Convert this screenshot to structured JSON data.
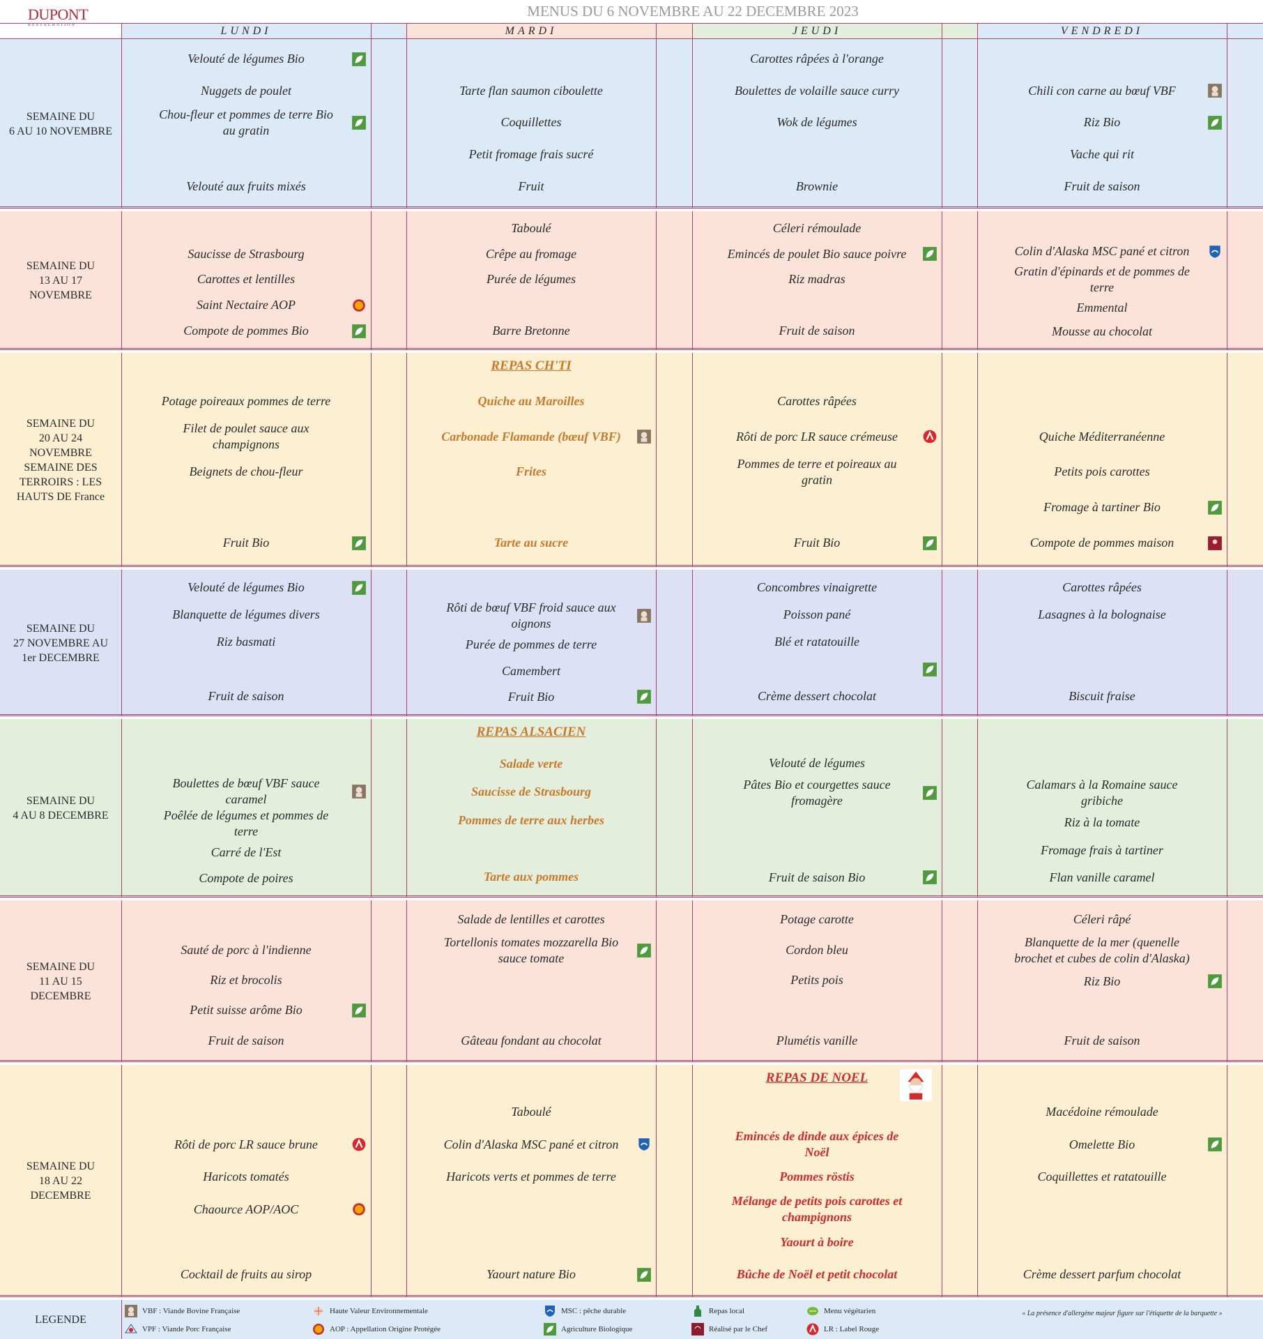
{
  "header": {
    "logo": "DUPONT",
    "logo_sub": "RESTAURATION",
    "title": "MENUS DU 6 NOVEMBRE AU 22 DECEMBRE 2023"
  },
  "days": [
    {
      "name": "LUNDI",
      "color": "#dce9f7"
    },
    {
      "name": "MARDI",
      "color": "#fbe3da"
    },
    {
      "name": "JEUDI",
      "color": "#e3efdc"
    },
    {
      "name": "VENDREDI",
      "color": "#dce9f7"
    }
  ],
  "weeks": [
    {
      "label": "SEMAINE DU\n6 AU 10 NOVEMBRE",
      "color": "#dce9f7",
      "cells": [
        {
          "items": [
            {
              "text": "Velouté de légumes Bio",
              "label": "bio"
            },
            "Nuggets de poulet",
            {
              "text": "Chou-fleur et pommes de terre Bio au gratin",
              "label": "bio"
            },
            null,
            "Velouté aux fruits mixés"
          ]
        },
        {
          "items": [
            null,
            "Tarte flan saumon ciboulette",
            "Coquillettes",
            "Petit fromage frais sucré",
            "Fruit"
          ]
        },
        {
          "items": [
            "Carottes râpées à l'orange",
            "Boulettes de volaille sauce curry",
            "Wok de légumes",
            null,
            "Brownie"
          ]
        },
        {
          "items": [
            null,
            {
              "text": "Chili con carne au bœuf VBF",
              "label": "vbf"
            },
            {
              "text": "Riz Bio",
              "label": "bio"
            },
            "Vache qui rit",
            "Fruit de saison"
          ]
        }
      ]
    },
    {
      "label": "SEMAINE DU\n13 AU 17\nNOVEMBRE",
      "color": "#fbe3da",
      "cells": [
        {
          "items": [
            null,
            "Saucisse de Strasbourg",
            "Carottes et lentilles",
            {
              "text": "Saint Nectaire AOP",
              "label": "aop"
            },
            {
              "text": "Compote de pommes Bio",
              "label": "bio"
            }
          ]
        },
        {
          "items": [
            "Taboulé",
            "Crêpe au fromage",
            "Purée de légumes",
            null,
            "Barre Bretonne"
          ]
        },
        {
          "items": [
            "Céleri rémoulade",
            {
              "text": "Emincés de poulet Bio sauce poivre",
              "label": "bio"
            },
            "Riz madras",
            null,
            "Fruit de saison"
          ]
        },
        {
          "items": [
            null,
            {
              "text": "Colin d'Alaska MSC pané et citron",
              "label": "msc"
            },
            "Gratin d'épinards et de pommes de terre",
            "Emmental",
            "Mousse au chocolat"
          ]
        }
      ]
    },
    {
      "label": "SEMAINE DU\n20 AU 24\nNOVEMBRE\nSEMAINE DES\nTERROIRS : LES\nHAUTS DE France",
      "color": "#fdf0d2",
      "cells": [
        {
          "items": [
            "Potage poireaux pommes de terre",
            "Filet de poulet sauce aux champignons",
            "Beignets de chou-fleur",
            null,
            {
              "text": "Fruit Bio",
              "label": "bio"
            }
          ]
        },
        {
          "theme": {
            "title": "REPAS CH'TI",
            "color": "#c87a2c"
          },
          "items": [
            "Quiche au Maroilles",
            {
              "text": "Carbonade Flamande (bœuf VBF)",
              "label": "vbf"
            },
            "Frites",
            null,
            "Tarte au sucre"
          ]
        },
        {
          "items": [
            "Carottes râpées",
            {
              "text": "Rôti de porc LR sauce crémeuse",
              "label": "lr"
            },
            "Pommes de terre et poireaux au gratin",
            null,
            {
              "text": "Fruit Bio",
              "label": "bio"
            }
          ]
        },
        {
          "items": [
            null,
            "Quiche Méditerranéenne",
            "Petits pois carottes",
            {
              "text": "Fromage à tartiner Bio",
              "label": "bio"
            },
            {
              "text": "Compote de pommes maison",
              "label": "maison"
            }
          ]
        }
      ]
    },
    {
      "label": "SEMAINE DU\n27 NOVEMBRE AU\n1er DECEMBRE",
      "color": "#dde1f5",
      "cells": [
        {
          "items": [
            {
              "text": "Velouté de légumes Bio",
              "label": "bio"
            },
            "Blanquette de légumes divers",
            "Riz basmati",
            null,
            "Fruit de saison"
          ]
        },
        {
          "items": [
            null,
            {
              "text": "Rôti de bœuf VBF froid sauce aux oignons",
              "label": "vbf"
            },
            "Purée de pommes de terre",
            "Camembert",
            {
              "text": "Fruit Bio",
              "label": "bio"
            }
          ]
        },
        {
          "items": [
            "Concombres vinaigrette",
            "Poisson pané",
            "Blé et ratatouille",
            {
              "label": "bio"
            },
            "Crème dessert chocolat"
          ]
        },
        {
          "items": [
            "Carottes râpées",
            "Lasagnes à la bolognaise",
            null,
            null,
            "Biscuit fraise"
          ]
        }
      ]
    },
    {
      "label": "SEMAINE DU\n4  AU 8 DECEMBRE",
      "color": "#e3efdc",
      "cells": [
        {
          "items": [
            null,
            {
              "text": "Boulettes de bœuf VBF sauce caramel",
              "label": "vbf"
            },
            "Poêlée de légumes et pommes de terre",
            "Carré de l'Est",
            "Compote de poires"
          ]
        },
        {
          "theme": {
            "title": "REPAS ALSACIEN",
            "color": "#c87a2c"
          },
          "items": [
            "Salade verte",
            "Saucisse de Strasbourg",
            "Pommes de terre aux herbes",
            null,
            "Tarte aux pommes"
          ]
        },
        {
          "items": [
            "Velouté de légumes",
            {
              "text": "Pâtes Bio et courgettes sauce fromagère",
              "label": "bio"
            },
            null,
            null,
            {
              "text": "Fruit de saison Bio",
              "label": "bio"
            }
          ]
        },
        {
          "items": [
            null,
            "Calamars à la Romaine sauce gribiche",
            "Riz à la tomate",
            "Fromage frais à tartiner",
            "Flan vanille caramel"
          ]
        }
      ]
    },
    {
      "label": "SEMAINE DU\n11 AU 15\nDECEMBRE",
      "color": "#fbe3da",
      "cells": [
        {
          "items": [
            null,
            "Sauté de porc à l'indienne",
            "Riz et brocolis",
            {
              "text": "Petit suisse arôme Bio",
              "label": "bio"
            },
            "Fruit de saison"
          ]
        },
        {
          "items": [
            "Salade de lentilles et carottes",
            {
              "text": "Tortellonis tomates mozzarella Bio sauce tomate",
              "label": "bio"
            },
            null,
            null,
            "Gâteau fondant au chocolat"
          ]
        },
        {
          "items": [
            "Potage carotte",
            "Cordon bleu",
            "Petits pois",
            null,
            "Plumétis vanille"
          ]
        },
        {
          "items": [
            "Céleri râpé",
            "Blanquette de la mer (quenelle brochet et cubes de colin d'Alaska)",
            {
              "text": "Riz Bio",
              "label": "bio"
            },
            null,
            "Fruit de saison"
          ]
        }
      ]
    },
    {
      "label": "SEMAINE DU\n18 AU 22\nDECEMBRE",
      "color": "#fdf0d2",
      "cells": [
        {
          "items": [
            null,
            {
              "text": "Rôti de porc LR sauce brune",
              "label": "lr"
            },
            "Haricots tomatés",
            {
              "text": "Chaource AOP/AOC",
              "label": "aop"
            },
            null,
            "Cocktail de fruits au sirop"
          ]
        },
        {
          "items": [
            "Taboulé",
            {
              "text": "Colin d'Alaska MSC pané et citron",
              "label": "msc"
            },
            "Haricots verts et pommes de terre",
            null,
            null,
            {
              "text": "Yaourt nature Bio",
              "label": "bio"
            }
          ]
        },
        {
          "theme": {
            "title": "REPAS DE NOEL",
            "color": "#d42a2a",
            "icon": "santa"
          },
          "items": [
            null,
            "Emincés de dinde aux épices de Noël",
            "Pommes röstis",
            "Mélange de petits pois carottes et champignons",
            "Yaourt à boire",
            "Bûche de Noël et petit chocolat"
          ]
        },
        {
          "items": [
            "Macédoine rémoulade",
            {
              "text": "Omelette Bio",
              "label": "bio"
            },
            "Coquillettes et ratatouille",
            null,
            null,
            "Crème dessert parfum chocolat"
          ]
        }
      ]
    }
  ],
  "legend": {
    "title": "LEGENDE",
    "color": "#dce9f7",
    "entries": [
      {
        "label": "vbf",
        "text": "VBF : Viande Bovine Française"
      },
      {
        "label": "vpf",
        "text": "VPF : Viande Porc Française"
      },
      {
        "label": "hve",
        "text": "Haute Valeur Environnementale"
      },
      {
        "label": "aop",
        "text": "AOP : Appellation Origine Protégée"
      },
      {
        "label": "msc",
        "text": "MSC : pêche durable"
      },
      {
        "label": "bio",
        "text": "Agriculture Biologique"
      },
      {
        "label": "local",
        "text": "Repas local"
      },
      {
        "label": "chef",
        "text": "Réalisé par le Chef"
      },
      {
        "label": "vege",
        "text": "Menu végétarien"
      },
      {
        "label": "lr",
        "text": "LR : Label Rouge"
      }
    ],
    "note": "« La présence d'allergène majeur figure sur l'étiquette de la barquette »"
  }
}
